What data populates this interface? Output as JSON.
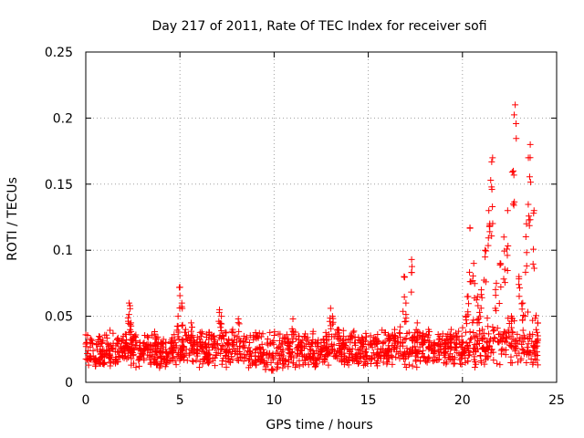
{
  "chart_data": {
    "type": "scatter",
    "title": "Day 217 of 2011, Rate Of TEC Index for receiver sofi",
    "xlabel": "GPS time / hours",
    "ylabel": "ROTI / TECUs",
    "xlim": [
      0,
      25
    ],
    "ylim": [
      0,
      0.25
    ],
    "x_ticks": [
      0,
      5,
      10,
      15,
      20,
      25
    ],
    "y_ticks": [
      0,
      0.05,
      0.1,
      0.15,
      0.2,
      0.25
    ],
    "x_tick_labels": [
      "0",
      "5",
      "10",
      "15",
      "20",
      "25"
    ],
    "y_tick_labels": [
      "0",
      "0.05",
      "0.1",
      "0.15",
      "0.2",
      "0.25"
    ],
    "grid": true,
    "marker": "plus",
    "series_color": "#ff0000",
    "series": [
      {
        "name": "ROTI",
        "x": [
          0.0,
          0.2,
          0.5,
          0.8,
          1.0,
          1.3,
          1.6,
          1.9,
          2.1,
          2.3,
          2.35,
          2.4,
          2.6,
          2.9,
          3.1,
          3.4,
          3.7,
          4.0,
          4.3,
          4.6,
          4.9,
          5.0,
          5.1,
          5.3,
          5.6,
          5.9,
          6.2,
          6.5,
          6.8,
          7.1,
          7.2,
          7.5,
          7.8,
          8.1,
          8.4,
          8.7,
          9.0,
          9.3,
          9.6,
          9.9,
          10.2,
          10.5,
          10.8,
          11.0,
          11.3,
          11.6,
          11.9,
          12.2,
          12.5,
          12.8,
          13.0,
          13.1,
          13.4,
          13.7,
          14.0,
          14.3,
          14.6,
          14.9,
          15.2,
          15.5,
          15.8,
          16.1,
          16.4,
          16.7,
          16.9,
          17.0,
          17.3,
          17.6,
          17.9,
          18.2,
          18.5,
          18.8,
          19.1,
          19.4,
          19.7,
          20.0,
          20.2,
          20.3,
          20.4,
          20.6,
          20.8,
          21.0,
          21.2,
          21.4,
          21.5,
          21.6,
          21.8,
          22.0,
          22.2,
          22.4,
          22.6,
          22.7,
          22.8,
          23.0,
          23.2,
          23.4,
          23.5,
          23.6,
          23.8,
          24.0
        ],
        "y": [
          0.036,
          0.02,
          0.018,
          0.022,
          0.015,
          0.02,
          0.019,
          0.025,
          0.03,
          0.06,
          0.058,
          0.045,
          0.035,
          0.025,
          0.03,
          0.02,
          0.024,
          0.018,
          0.022,
          0.03,
          0.05,
          0.072,
          0.06,
          0.04,
          0.045,
          0.03,
          0.03,
          0.022,
          0.035,
          0.055,
          0.05,
          0.03,
          0.04,
          0.048,
          0.035,
          0.03,
          0.02,
          0.022,
          0.015,
          0.01,
          0.015,
          0.02,
          0.03,
          0.048,
          0.035,
          0.02,
          0.025,
          0.018,
          0.03,
          0.035,
          0.056,
          0.05,
          0.04,
          0.03,
          0.025,
          0.02,
          0.03,
          0.025,
          0.02,
          0.022,
          0.03,
          0.035,
          0.04,
          0.042,
          0.08,
          0.06,
          0.093,
          0.045,
          0.035,
          0.04,
          0.03,
          0.035,
          0.03,
          0.04,
          0.035,
          0.03,
          0.05,
          0.065,
          0.117,
          0.09,
          0.065,
          0.07,
          0.1,
          0.13,
          0.153,
          0.17,
          0.075,
          0.09,
          0.11,
          0.13,
          0.05,
          0.16,
          0.21,
          0.08,
          0.06,
          0.12,
          0.17,
          0.18,
          0.13,
          0.045
        ]
      }
    ],
    "background_note": "Dense band of points between 0.01 and 0.04 across the full day"
  }
}
